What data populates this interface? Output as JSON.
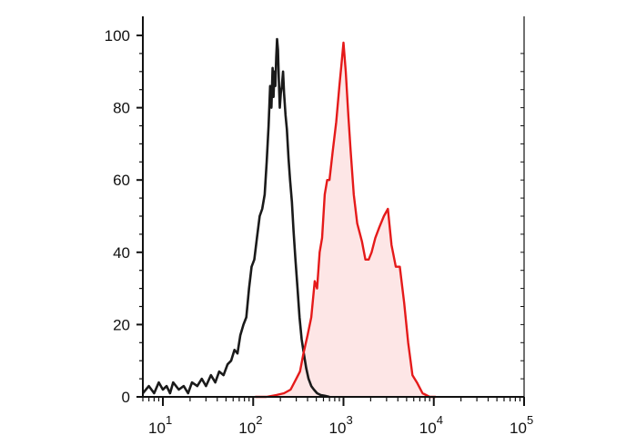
{
  "chart_data": {
    "type": "area",
    "title": "",
    "xlabel": "",
    "ylabel": "",
    "x_scale": "log",
    "xlim": [
      6,
      100000
    ],
    "ylim": [
      0,
      100
    ],
    "grid": false,
    "legend": "none",
    "y_ticks": [
      {
        "value": 0,
        "label": "0"
      },
      {
        "value": 20,
        "label": "20"
      },
      {
        "value": 40,
        "label": "40"
      },
      {
        "value": 60,
        "label": "60"
      },
      {
        "value": 80,
        "label": "80"
      },
      {
        "value": 100,
        "label": "100"
      }
    ],
    "x_ticks": [
      {
        "value": 10,
        "base": "10",
        "exp": "1"
      },
      {
        "value": 100,
        "base": "10",
        "exp": "2"
      },
      {
        "value": 1000,
        "base": "10",
        "exp": "3"
      },
      {
        "value": 10000,
        "base": "10",
        "exp": "4"
      },
      {
        "value": 100000,
        "base": "10",
        "exp": "5"
      }
    ],
    "series": [
      {
        "color": "#1a1a1a",
        "fill": "none",
        "points": [
          [
            6,
            1
          ],
          [
            7,
            3
          ],
          [
            8,
            1
          ],
          [
            9,
            4
          ],
          [
            10,
            2
          ],
          [
            11,
            3
          ],
          [
            12,
            1
          ],
          [
            13,
            4
          ],
          [
            15,
            2
          ],
          [
            17,
            3
          ],
          [
            19,
            1
          ],
          [
            21,
            4
          ],
          [
            24,
            3
          ],
          [
            27,
            5
          ],
          [
            30,
            3
          ],
          [
            34,
            6
          ],
          [
            38,
            4
          ],
          [
            42,
            7
          ],
          [
            47,
            6
          ],
          [
            52,
            9
          ],
          [
            57,
            10
          ],
          [
            62,
            13
          ],
          [
            67,
            12
          ],
          [
            72,
            17
          ],
          [
            78,
            20
          ],
          [
            84,
            22
          ],
          [
            90,
            30
          ],
          [
            96,
            36
          ],
          [
            103,
            38
          ],
          [
            110,
            44
          ],
          [
            118,
            50
          ],
          [
            126,
            52
          ],
          [
            134,
            56
          ],
          [
            141,
            65
          ],
          [
            148,
            75
          ],
          [
            154,
            86
          ],
          [
            159,
            80
          ],
          [
            164,
            91
          ],
          [
            168,
            83
          ],
          [
            172,
            90
          ],
          [
            176,
            86
          ],
          [
            180,
            94
          ],
          [
            184,
            99
          ],
          [
            188,
            96
          ],
          [
            192,
            88
          ],
          [
            197,
            80
          ],
          [
            202,
            84
          ],
          [
            208,
            86
          ],
          [
            214,
            90
          ],
          [
            220,
            84
          ],
          [
            228,
            78
          ],
          [
            236,
            74
          ],
          [
            246,
            66
          ],
          [
            256,
            60
          ],
          [
            268,
            54
          ],
          [
            280,
            46
          ],
          [
            294,
            38
          ],
          [
            310,
            30
          ],
          [
            326,
            22
          ],
          [
            344,
            16
          ],
          [
            364,
            12
          ],
          [
            386,
            8
          ],
          [
            410,
            5
          ],
          [
            440,
            3
          ],
          [
            470,
            2
          ],
          [
            510,
            1
          ],
          [
            560,
            0.5
          ],
          [
            620,
            0.3
          ],
          [
            700,
            0
          ]
        ]
      },
      {
        "color": "#e51a1a",
        "fill": "#fde6e6",
        "points": [
          [
            105,
            0
          ],
          [
            140,
            0
          ],
          [
            180,
            0.5
          ],
          [
            220,
            1
          ],
          [
            260,
            2
          ],
          [
            300,
            5
          ],
          [
            330,
            7
          ],
          [
            360,
            12
          ],
          [
            400,
            17
          ],
          [
            440,
            22
          ],
          [
            480,
            32
          ],
          [
            510,
            30
          ],
          [
            545,
            40
          ],
          [
            580,
            44
          ],
          [
            620,
            56
          ],
          [
            660,
            60
          ],
          [
            700,
            60
          ],
          [
            760,
            68
          ],
          [
            830,
            76
          ],
          [
            900,
            86
          ],
          [
            950,
            92
          ],
          [
            1000,
            98
          ],
          [
            1060,
            90
          ],
          [
            1130,
            78
          ],
          [
            1200,
            68
          ],
          [
            1300,
            56
          ],
          [
            1420,
            48
          ],
          [
            1600,
            43
          ],
          [
            1750,
            38
          ],
          [
            1900,
            38
          ],
          [
            2050,
            40
          ],
          [
            2250,
            44
          ],
          [
            2500,
            47
          ],
          [
            2800,
            50
          ],
          [
            3100,
            52
          ],
          [
            3400,
            42
          ],
          [
            3800,
            36
          ],
          [
            4200,
            36
          ],
          [
            4700,
            26
          ],
          [
            5200,
            15
          ],
          [
            5800,
            6
          ],
          [
            6500,
            4
          ],
          [
            7500,
            1
          ],
          [
            9000,
            0
          ],
          [
            10500,
            0
          ]
        ]
      }
    ]
  }
}
